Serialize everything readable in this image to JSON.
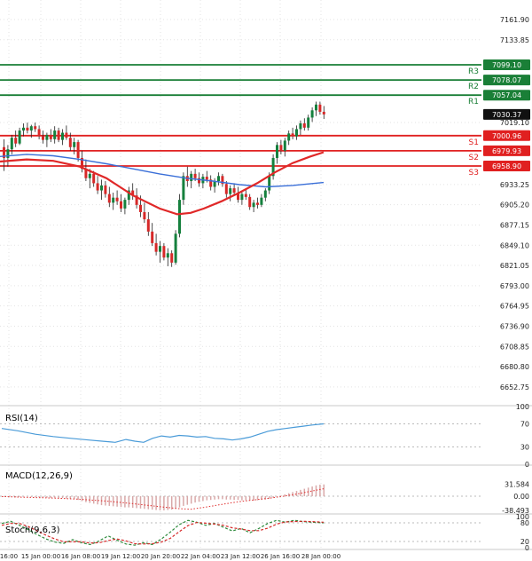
{
  "chart_data": {
    "type": "candlestick",
    "title": "",
    "timeframe_axis_labels": [
      "16:00",
      "15 Jan 00:00",
      "16 Jan 08:00",
      "19 Jan 12:00",
      "20 Jan 20:00",
      "22 Jan 04:00",
      "23 Jan 12:00",
      "26 Jan 16:00",
      "28 Jan 00:00"
    ],
    "price_axis_ticks": [
      "7161.90",
      "7133.85",
      "7019.10",
      "6933.25",
      "6905.20",
      "6877.15",
      "6849.10",
      "6821.05",
      "6793.00",
      "6764.95",
      "6736.90",
      "6708.85",
      "6680.80",
      "6652.75"
    ],
    "current_price": 7030.37,
    "levels": {
      "resistance": [
        {
          "name": "R3",
          "value": 7099.1
        },
        {
          "name": "R2",
          "value": 7078.07
        },
        {
          "name": "R1",
          "value": 7057.04
        }
      ],
      "support": [
        {
          "name": "S1",
          "value": 7000.96
        },
        {
          "name": "S2",
          "value": 6979.93
        },
        {
          "name": "S3",
          "value": 6958.9
        }
      ]
    },
    "candles_ohlc": [
      [
        6985,
        6996,
        6952,
        6970
      ],
      [
        6970,
        6988,
        6958,
        6982
      ],
      [
        6982,
        7002,
        6975,
        6998
      ],
      [
        6998,
        7008,
        6985,
        6990
      ],
      [
        6990,
        7012,
        6988,
        7008
      ],
      [
        7008,
        7018,
        7000,
        7012
      ],
      [
        7012,
        7019,
        7004,
        7008
      ],
      [
        7008,
        7016,
        6998,
        7014
      ],
      [
        7014,
        7019,
        7006,
        7010
      ],
      [
        7010,
        7015,
        6996,
        7000
      ],
      [
        7000,
        7008,
        6990,
        6995
      ],
      [
        6995,
        7005,
        6985,
        7002
      ],
      [
        7002,
        7010,
        6992,
        6996
      ],
      [
        6996,
        7014,
        6990,
        7008
      ],
      [
        7008,
        7012,
        6992,
        6995
      ],
      [
        6995,
        7010,
        6988,
        7005
      ],
      [
        7005,
        7015,
        6995,
        6998
      ],
      [
        6998,
        7005,
        6980,
        6985
      ],
      [
        6985,
        6998,
        6975,
        6992
      ],
      [
        6992,
        6995,
        6965,
        6970
      ],
      [
        6970,
        6980,
        6950,
        6955
      ],
      [
        6955,
        6968,
        6938,
        6942
      ],
      [
        6942,
        6955,
        6928,
        6948
      ],
      [
        6948,
        6952,
        6930,
        6935
      ],
      [
        6935,
        6945,
        6920,
        6925
      ],
      [
        6925,
        6940,
        6912,
        6932
      ],
      [
        6932,
        6938,
        6915,
        6920
      ],
      [
        6920,
        6930,
        6902,
        6908
      ],
      [
        6908,
        6922,
        6898,
        6915
      ],
      [
        6915,
        6925,
        6905,
        6910
      ],
      [
        6910,
        6920,
        6895,
        6900
      ],
      [
        6900,
        6915,
        6892,
        6912
      ],
      [
        6912,
        6930,
        6905,
        6925
      ],
      [
        6925,
        6935,
        6912,
        6918
      ],
      [
        6918,
        6928,
        6900,
        6905
      ],
      [
        6905,
        6918,
        6888,
        6895
      ],
      [
        6895,
        6908,
        6880,
        6885
      ],
      [
        6885,
        6895,
        6862,
        6868
      ],
      [
        6868,
        6880,
        6848,
        6852
      ],
      [
        6852,
        6865,
        6835,
        6840
      ],
      [
        6840,
        6855,
        6825,
        6848
      ],
      [
        6848,
        6852,
        6828,
        6832
      ],
      [
        6832,
        6845,
        6820,
        6838
      ],
      [
        6838,
        6842,
        6819,
        6825
      ],
      [
        6825,
        6870,
        6822,
        6865
      ],
      [
        6865,
        6920,
        6860,
        6912
      ],
      [
        6912,
        6950,
        6905,
        6945
      ],
      [
        6945,
        6958,
        6930,
        6938
      ],
      [
        6938,
        6952,
        6928,
        6948
      ],
      [
        6948,
        6955,
        6938,
        6942
      ],
      [
        6942,
        6950,
        6930,
        6935
      ],
      [
        6935,
        6948,
        6928,
        6944
      ],
      [
        6944,
        6952,
        6936,
        6940
      ],
      [
        6940,
        6946,
        6925,
        6930
      ],
      [
        6930,
        6942,
        6922,
        6938
      ],
      [
        6938,
        6950,
        6932,
        6945
      ],
      [
        6945,
        6948,
        6930,
        6934
      ],
      [
        6934,
        6938,
        6915,
        6920
      ],
      [
        6920,
        6932,
        6910,
        6928
      ],
      [
        6928,
        6935,
        6918,
        6922
      ],
      [
        6922,
        6930,
        6908,
        6912
      ],
      [
        6912,
        6925,
        6905,
        6920
      ],
      [
        6920,
        6928,
        6912,
        6916
      ],
      [
        6916,
        6920,
        6898,
        6902
      ],
      [
        6902,
        6912,
        6895,
        6908
      ],
      [
        6908,
        6915,
        6900,
        6905
      ],
      [
        6905,
        6920,
        6902,
        6915
      ],
      [
        6915,
        6928,
        6910,
        6925
      ],
      [
        6925,
        6950,
        6920,
        6945
      ],
      [
        6945,
        6975,
        6940,
        6970
      ],
      [
        6970,
        6992,
        6962,
        6988
      ],
      [
        6988,
        6995,
        6975,
        6980
      ],
      [
        6980,
        6998,
        6972,
        6994
      ],
      [
        6994,
        7008,
        6988,
        7004
      ],
      [
        7004,
        7012,
        6996,
        7000
      ],
      [
        7000,
        7015,
        6995,
        7010
      ],
      [
        7010,
        7022,
        7002,
        7018
      ],
      [
        7018,
        7025,
        7008,
        7012
      ],
      [
        7012,
        7030,
        7008,
        7026
      ],
      [
        7026,
        7040,
        7020,
        7036
      ],
      [
        7036,
        7048,
        7028,
        7044
      ],
      [
        7044,
        7048,
        7030,
        7034
      ],
      [
        7034,
        7042,
        7024,
        7030.37
      ]
    ],
    "moving_averages": [
      {
        "name": "ma-fast-blue",
        "color": "#3a6fd8",
        "points": [
          [
            0,
            6972
          ],
          [
            30,
            6975
          ],
          [
            60,
            6973
          ],
          [
            90,
            6968
          ],
          [
            120,
            6962
          ],
          [
            150,
            6955
          ],
          [
            180,
            6948
          ],
          [
            210,
            6942
          ],
          [
            240,
            6938
          ],
          [
            270,
            6933
          ],
          [
            300,
            6930
          ],
          [
            330,
            6932
          ],
          [
            365,
            6936
          ]
        ]
      },
      {
        "name": "ma-slow-red",
        "color": "#e02828",
        "points": [
          [
            0,
            6965
          ],
          [
            30,
            6968
          ],
          [
            60,
            6966
          ],
          [
            90,
            6958
          ],
          [
            120,
            6942
          ],
          [
            150,
            6918
          ],
          [
            180,
            6900
          ],
          [
            200,
            6892
          ],
          [
            215,
            6894
          ],
          [
            230,
            6900
          ],
          [
            250,
            6910
          ],
          [
            270,
            6922
          ],
          [
            290,
            6935
          ],
          [
            310,
            6950
          ],
          [
            330,
            6963
          ],
          [
            350,
            6972
          ],
          [
            365,
            6978
          ]
        ]
      }
    ],
    "indicators": {
      "rsi": {
        "label": "RSI(14)",
        "axis_ticks": [
          100,
          70,
          30,
          0
        ],
        "level_lines": [
          70,
          30
        ],
        "series": [
          [
            2,
            62
          ],
          [
            20,
            58
          ],
          [
            40,
            52
          ],
          [
            60,
            48
          ],
          [
            80,
            45
          ],
          [
            100,
            42
          ],
          [
            115,
            40
          ],
          [
            130,
            38
          ],
          [
            142,
            43
          ],
          [
            152,
            40
          ],
          [
            162,
            38
          ],
          [
            172,
            45
          ],
          [
            182,
            49
          ],
          [
            192,
            47
          ],
          [
            202,
            50
          ],
          [
            212,
            49
          ],
          [
            222,
            47
          ],
          [
            232,
            48
          ],
          [
            242,
            45
          ],
          [
            252,
            44
          ],
          [
            262,
            42
          ],
          [
            272,
            44
          ],
          [
            282,
            47
          ],
          [
            292,
            52
          ],
          [
            302,
            57
          ],
          [
            312,
            60
          ],
          [
            322,
            62
          ],
          [
            332,
            64
          ],
          [
            342,
            66
          ],
          [
            352,
            68
          ],
          [
            365,
            70
          ]
        ]
      },
      "macd": {
        "label": "MACD(12,26,9)",
        "axis_ticks": [
          "31.584",
          "0.00",
          "-38.493"
        ],
        "histogram": [
          -1,
          -2,
          -2,
          -3,
          -2,
          -1,
          -1,
          -2,
          -2,
          -3,
          -4,
          -4,
          -5,
          -4,
          -5,
          -5,
          -6,
          -7,
          -8,
          -10,
          -13,
          -16,
          -18,
          -20,
          -22,
          -24,
          -25,
          -26,
          -27,
          -28,
          -29,
          -30,
          -30,
          -31,
          -32,
          -33,
          -34,
          -35,
          -36,
          -37,
          -38,
          -38,
          -37,
          -36,
          -34,
          -30,
          -26,
          -23,
          -20,
          -17,
          -15,
          -13,
          -11,
          -10,
          -9,
          -8,
          -8,
          -9,
          -9,
          -10,
          -10,
          -11,
          -11,
          -12,
          -12,
          -11,
          -10,
          -9,
          -7,
          -4,
          -1,
          2,
          5,
          8,
          11,
          14,
          17,
          20,
          23,
          26,
          29,
          31,
          31.6
        ],
        "signal": [
          [
            2,
            -1
          ],
          [
            30,
            -3
          ],
          [
            60,
            -5
          ],
          [
            90,
            -8
          ],
          [
            120,
            -13
          ],
          [
            150,
            -20
          ],
          [
            180,
            -28
          ],
          [
            200,
            -33
          ],
          [
            215,
            -35
          ],
          [
            230,
            -30
          ],
          [
            245,
            -24
          ],
          [
            260,
            -18
          ],
          [
            275,
            -13
          ],
          [
            290,
            -9
          ],
          [
            305,
            -5
          ],
          [
            320,
            0
          ],
          [
            335,
            6
          ],
          [
            350,
            13
          ],
          [
            365,
            20
          ]
        ]
      },
      "stoch": {
        "label": "Stoch(9,6,3)",
        "axis_ticks": [
          100,
          80,
          20,
          0
        ],
        "level_lines": [
          80,
          20
        ],
        "k_series": [
          [
            2,
            78
          ],
          [
            12,
            85
          ],
          [
            22,
            72
          ],
          [
            32,
            58
          ],
          [
            42,
            42
          ],
          [
            52,
            28
          ],
          [
            62,
            18
          ],
          [
            72,
            14
          ],
          [
            82,
            26
          ],
          [
            92,
            16
          ],
          [
            102,
            10
          ],
          [
            112,
            22
          ],
          [
            122,
            38
          ],
          [
            132,
            24
          ],
          [
            142,
            12
          ],
          [
            152,
            8
          ],
          [
            162,
            16
          ],
          [
            172,
            10
          ],
          [
            182,
            28
          ],
          [
            192,
            50
          ],
          [
            202,
            74
          ],
          [
            212,
            88
          ],
          [
            222,
            82
          ],
          [
            232,
            72
          ],
          [
            242,
            78
          ],
          [
            252,
            66
          ],
          [
            262,
            54
          ],
          [
            272,
            62
          ],
          [
            282,
            48
          ],
          [
            292,
            62
          ],
          [
            302,
            78
          ],
          [
            312,
            88
          ],
          [
            322,
            82
          ],
          [
            332,
            88
          ],
          [
            342,
            84
          ],
          [
            352,
            82
          ],
          [
            365,
            80
          ]
        ],
        "d_series": [
          [
            2,
            72
          ],
          [
            12,
            78
          ],
          [
            22,
            78
          ],
          [
            32,
            68
          ],
          [
            42,
            54
          ],
          [
            52,
            40
          ],
          [
            62,
            28
          ],
          [
            72,
            19
          ],
          [
            82,
            19
          ],
          [
            92,
            19
          ],
          [
            102,
            15
          ],
          [
            112,
            16
          ],
          [
            122,
            23
          ],
          [
            132,
            28
          ],
          [
            142,
            22
          ],
          [
            152,
            13
          ],
          [
            162,
            12
          ],
          [
            172,
            13
          ],
          [
            182,
            18
          ],
          [
            192,
            30
          ],
          [
            202,
            51
          ],
          [
            212,
            71
          ],
          [
            222,
            81
          ],
          [
            232,
            79
          ],
          [
            242,
            76
          ],
          [
            252,
            72
          ],
          [
            262,
            64
          ],
          [
            272,
            60
          ],
          [
            282,
            55
          ],
          [
            292,
            55
          ],
          [
            302,
            63
          ],
          [
            312,
            76
          ],
          [
            322,
            83
          ],
          [
            332,
            84
          ],
          [
            342,
            85
          ],
          [
            352,
            84
          ],
          [
            365,
            82
          ]
        ]
      }
    },
    "colors": {
      "up_candle": "#15803d",
      "down_candle": "#d62828",
      "wick": "#222222",
      "resistance": "#1a7f37",
      "support": "#e02020",
      "current_price_bg": "#111111",
      "rsi_line": "#4a9bd8",
      "macd_histogram": "#d9a8a8",
      "macd_signal": "#e03131",
      "stoch_k": "#2e8b3d",
      "stoch_d": "#d62828",
      "grid": "#e3e3e3",
      "axis_text": "#222222"
    }
  }
}
